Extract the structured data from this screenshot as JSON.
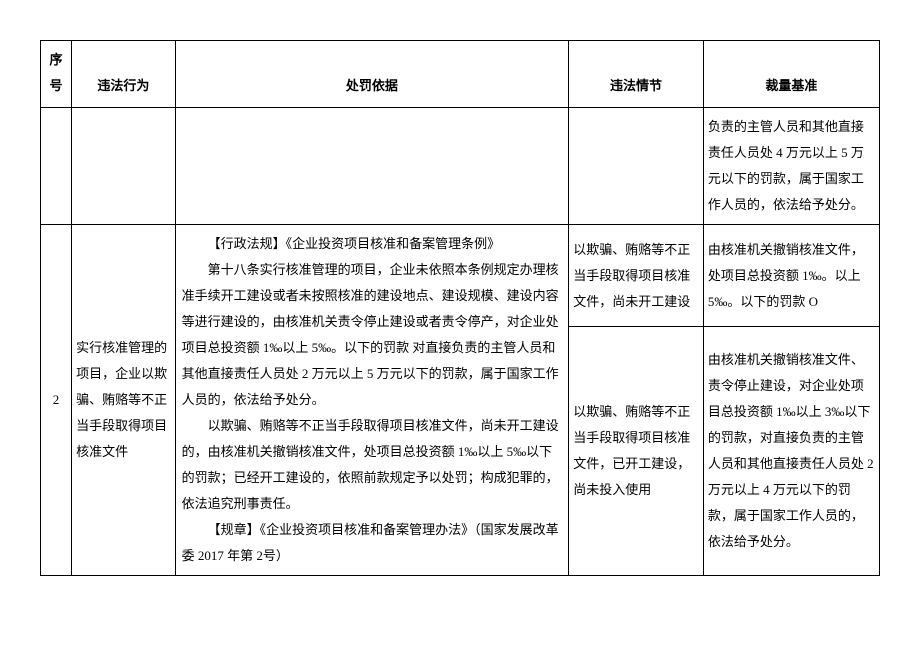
{
  "table": {
    "headers": {
      "num": "序号",
      "violation": "违法行为",
      "basis": "处罚依据",
      "circumstance": "违法情节",
      "standard": "裁量基准"
    },
    "rows": [
      {
        "num": "",
        "violation": "",
        "basis": "",
        "circumstance": "",
        "standard": "负责的主管人员和其他直接责任人员处 4 万元以上 5 万元以下的罚款，属于国家工作人员的，依法给予处分。"
      },
      {
        "num": "2",
        "violation": "实行核准管理的项目，企业以欺骗、贿赂等不正当手段取得项目核准文件",
        "basis_p1": "【行政法规】《企业投资项目核准和备案管理条例》",
        "basis_p2": "第十八条实行核准管理的项目，企业未依照本条例规定办理核准手续开工建设或者未按照核准的建设地点、建设规模、建设内容等进行建设的，由核准机关责令停止建设或者责令停产，对企业处项目总投资额 1‰以上 5‰。以下的罚款 对直接负责的主管人员和其他直接责任人员处 2 万元以上 5 万元以下的罚款，属于国家工作人员的，依法给予处分。",
        "basis_p3": "以欺骗、贿赂等不正当手段取得项目核准文件，尚未开工建设的，由核准机关撤销核准文件，处项目总投资额 1‰以上 5‰以下的罚款；已经开工建设的，依照前款规定予以处罚；构成犯罪的，依法追究刑事责任。",
        "basis_p4": "【规章】《企业投资项目核准和备案管理办法》（国家发展改革委 2017 年第 2号）",
        "circ1": "以欺骗、贿赂等不正当手段取得项目核准文件，尚未开工建设",
        "std1": "由核准机关撤销核准文件，处项目总投资额 1‰。以上 5‰。以下的罚款 O",
        "circ2": "以欺骗、贿赂等不正当手段取得项目核准文件，已开工建设，尚未投入使用",
        "std2": "由核准机关撤销核准文件、责令停止建设，对企业处项目总投资额 1‰以上 3‰以下的罚款，对直接负责的主管人员和其他直接责任人员处 2 万元以上 4 万元以下的罚款，属于国家工作人员的，依法给予处分。"
      }
    ]
  }
}
